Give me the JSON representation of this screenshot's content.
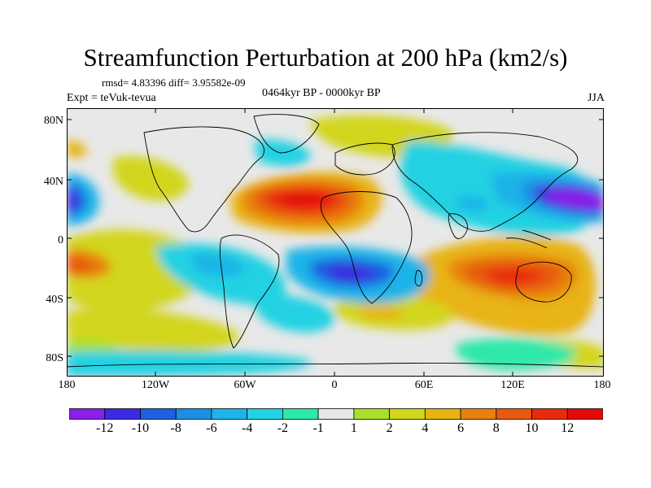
{
  "title": "Streamfunction Perturbation at 200 hPa (km2/s)",
  "stats": "rmsd= 4.83396 diff= 3.95582e-09",
  "left_label": "Expt = teVuk-tevua",
  "center_label": "0464kyr BP - 0000kyr BP",
  "right_label": "JJA",
  "axes": {
    "lat_labels": [
      "80N",
      "40N",
      "0",
      "40S",
      "80S"
    ],
    "lon_labels": [
      "180",
      "120W",
      "60W",
      "0",
      "60E",
      "120E",
      "180"
    ]
  },
  "colorbar": {
    "labels": [
      "-12",
      "-10",
      "-8",
      "-6",
      "-4",
      "-2",
      "-1",
      "1",
      "2",
      "4",
      "6",
      "8",
      "10",
      "12"
    ],
    "colors": [
      "#8a1fe8",
      "#3a2be0",
      "#1f5fe0",
      "#1c8fe4",
      "#1fb4e8",
      "#23d2e2",
      "#2ee8a8",
      "#e8e8e8",
      "#a8e02c",
      "#d2d61c",
      "#e8b414",
      "#e8800f",
      "#e85a10",
      "#e82a0c",
      "#e40a0a"
    ]
  },
  "colors": {
    "frame": "#000000",
    "neutral": "#e8e8e8"
  }
}
